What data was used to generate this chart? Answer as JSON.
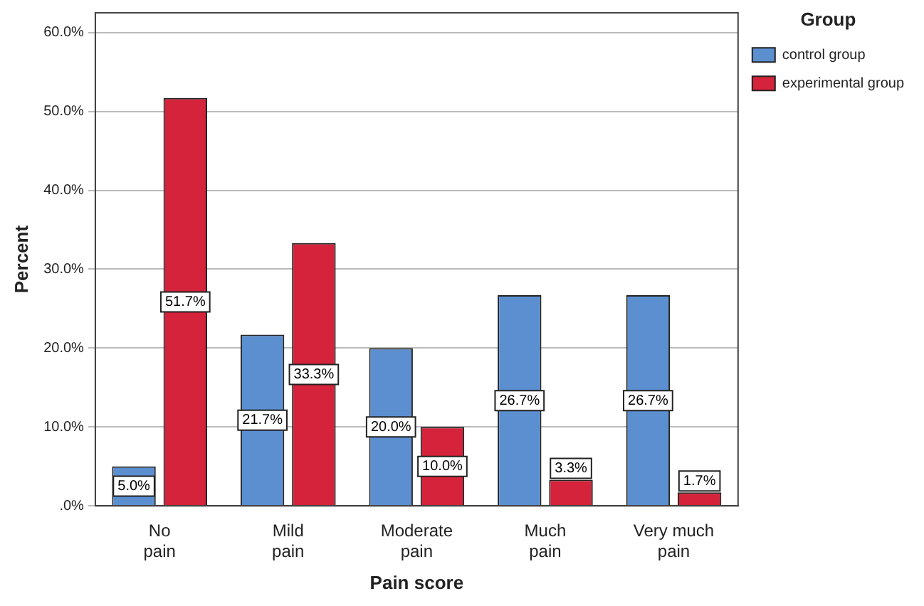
{
  "chart_data": {
    "type": "bar",
    "xlabel": "Pain score",
    "ylabel": "Percent",
    "legend_title": "Group",
    "legend": "top right",
    "grid": "y",
    "categories": [
      "No pain",
      "Mild pain",
      "Moderate pain",
      "Much pain",
      "Very much pain"
    ],
    "series": [
      {
        "name": "control group",
        "color": "#5b8fd0",
        "values": [
          5.0,
          21.7,
          20.0,
          26.7,
          26.7
        ],
        "value_labels": [
          "5.0%",
          "21.7%",
          "20.0%",
          "26.7%",
          "26.7%"
        ]
      },
      {
        "name": "experimental group",
        "color": "#d4233a",
        "values": [
          51.7,
          33.3,
          10.0,
          3.3,
          1.7
        ],
        "value_labels": [
          "51.7%",
          "33.3%",
          "10.0%",
          "3.3%",
          "1.7%"
        ]
      }
    ],
    "ylim": [
      0,
      62.5
    ],
    "yticks": [
      {
        "value": 0,
        "label": ".0%"
      },
      {
        "value": 10,
        "label": "10.0%"
      },
      {
        "value": 20,
        "label": "20.0%"
      },
      {
        "value": 30,
        "label": "30.0%"
      },
      {
        "value": 40,
        "label": "40.0%"
      },
      {
        "value": 50,
        "label": "50.0%"
      },
      {
        "value": 60,
        "label": "60.0%"
      }
    ]
  }
}
